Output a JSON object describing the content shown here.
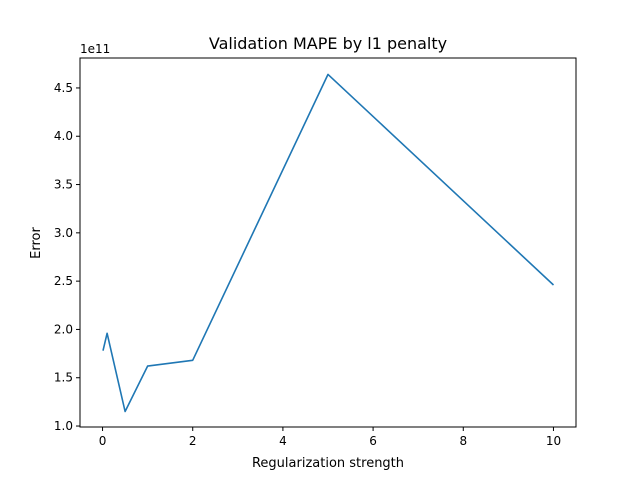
{
  "chart_data": {
    "type": "line",
    "title": "Validation MAPE by l1 penalty",
    "xlabel": "Regularization strength",
    "ylabel": "Error",
    "y_offset_label": "1e11",
    "xlim": [
      -0.5,
      10.5
    ],
    "ylim": [
      0.99,
      4.81
    ],
    "x_ticks": [
      0,
      2,
      4,
      6,
      8,
      10
    ],
    "x_tick_labels": [
      "0",
      "2",
      "4",
      "6",
      "8",
      "10"
    ],
    "y_ticks": [
      1.0,
      1.5,
      2.0,
      2.5,
      3.0,
      3.5,
      4.0,
      4.5
    ],
    "y_tick_labels": [
      "1.0",
      "1.5",
      "2.0",
      "2.5",
      "3.0",
      "3.5",
      "4.0",
      "4.5"
    ],
    "grid": false,
    "series": [
      {
        "color": "#1f77b4",
        "x": [
          0.01,
          0.1,
          0.5,
          1,
          2,
          5,
          10
        ],
        "y": [
          1.78,
          1.96,
          1.15,
          1.62,
          1.68,
          4.64,
          2.46
        ]
      }
    ]
  }
}
